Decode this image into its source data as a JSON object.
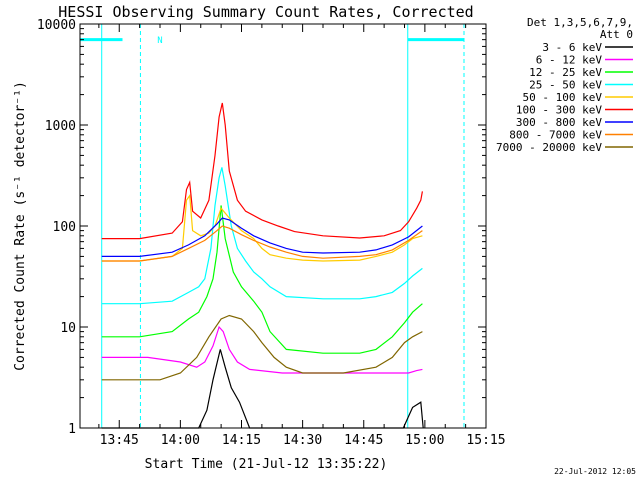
{
  "chart_data": {
    "type": "line",
    "title": "HESSI Observing Summary Count Rates, Corrected",
    "xlabel": "Start Time (21-Jul-12 13:35:22)",
    "ylabel": "Corrected Count Rate (s⁻¹ detector⁻¹)",
    "yscale": "log",
    "ylim": [
      1,
      10000
    ],
    "xlim_minutes": [
      35.37,
      135.0
    ],
    "x_unit": "minutes after 13:00 UT",
    "x_ticks": [
      {
        "t": 45,
        "label": "13:45"
      },
      {
        "t": 60,
        "label": "14:00"
      },
      {
        "t": 75,
        "label": "14:15"
      },
      {
        "t": 90,
        "label": "14:30"
      },
      {
        "t": 105,
        "label": "14:45"
      },
      {
        "t": 120,
        "label": "15:00"
      },
      {
        "t": 135,
        "label": "15:15"
      }
    ],
    "y_ticks": [
      {
        "v": 1,
        "label": "1"
      },
      {
        "v": 10,
        "label": "10"
      },
      {
        "v": 100,
        "label": "100"
      },
      {
        "v": 1000,
        "label": "1000"
      },
      {
        "v": 10000,
        "label": "10000"
      }
    ],
    "legend_header": [
      "Det 1,3,5,6,7,9,",
      "Att 0"
    ],
    "series": [
      {
        "name": "3 - 6 keV",
        "color": "#000000",
        "t": [
          40.7,
          64.5,
          66.5,
          68.0,
          69.8,
          71.0,
          72.5,
          74.5,
          77.0,
          79.0,
          114.7,
          117.0,
          119.0,
          119.6
        ],
        "values": [
          1,
          1,
          1.5,
          3,
          6,
          4,
          2.5,
          1.8,
          1,
          1,
          1,
          1.6,
          1.8,
          1
        ]
      },
      {
        "name": "6 - 12 keV",
        "color": "#ff00ff",
        "t": [
          40.7,
          52.0,
          60.0,
          64.0,
          66.0,
          68.0,
          69.5,
          70.5,
          72.0,
          74.0,
          77.0,
          85.0,
          100.0,
          110.0,
          116.0,
          118.0,
          119.4
        ],
        "values": [
          5,
          5,
          4.5,
          4,
          4.5,
          6.5,
          10,
          9,
          6,
          4.5,
          3.8,
          3.5,
          3.5,
          3.5,
          3.5,
          3.7,
          3.8
        ]
      },
      {
        "name": "12 - 25 keV",
        "color": "#00ff00",
        "t": [
          40.7,
          50.0,
          58.0,
          62.0,
          64.5,
          66.5,
          68.0,
          69.0,
          70.0,
          71.0,
          73.0,
          75.0,
          78.0,
          80.0,
          82.0,
          86.0,
          95.0,
          104.0,
          108.0,
          112.0,
          115.0,
          117.0,
          119.4
        ],
        "values": [
          8,
          8,
          9,
          12,
          14,
          20,
          30,
          55,
          160,
          75,
          35,
          25,
          18,
          14,
          9,
          6,
          5.5,
          5.5,
          6,
          8,
          11,
          14,
          17
        ]
      },
      {
        "name": "25 - 50 keV",
        "color": "#00ffff",
        "t": [
          40.7,
          50.0,
          58.0,
          62.0,
          64.5,
          66.0,
          67.5,
          68.5,
          69.5,
          70.2,
          71.0,
          72.5,
          74.0,
          76.0,
          78.0,
          80.0,
          82.0,
          86.0,
          95.0,
          104.0,
          108.0,
          112.0,
          115.0,
          117.0,
          119.4
        ],
        "values": [
          17,
          17,
          18,
          22,
          25,
          30,
          60,
          160,
          300,
          380,
          250,
          100,
          60,
          45,
          35,
          30,
          25,
          20,
          19,
          19,
          20,
          22,
          27,
          32,
          38
        ]
      },
      {
        "name": "50 - 100 keV",
        "color": "#ffcc00",
        "t": [
          40.7,
          50.0,
          58.0,
          60.5,
          61.5,
          62.3,
          63.0,
          65.0,
          67.0,
          68.5,
          70.0,
          72.0,
          75.0,
          78.0,
          80.0,
          82.0,
          86.0,
          90.0,
          95.0,
          104.0,
          108.0,
          112.0,
          115.0,
          117.0,
          119.4
        ],
        "values": [
          45,
          45,
          50,
          60,
          180,
          200,
          90,
          80,
          85,
          100,
          150,
          120,
          90,
          75,
          60,
          52,
          48,
          46,
          45,
          46,
          50,
          55,
          65,
          75,
          80
        ]
      },
      {
        "name": "100 - 300 keV",
        "color": "#ff0000",
        "t": [
          40.7,
          50.0,
          58.0,
          60.5,
          61.5,
          62.3,
          63.0,
          65.0,
          67.0,
          68.5,
          69.5,
          70.3,
          71.0,
          72.0,
          74.0,
          76.0,
          80.0,
          84.0,
          88.0,
          95.0,
          104.0,
          110.0,
          114.0,
          116.0,
          118.0,
          119.0,
          119.4
        ],
        "values": [
          75,
          75,
          85,
          110,
          230,
          270,
          140,
          120,
          180,
          500,
          1200,
          1650,
          1000,
          350,
          180,
          140,
          115,
          100,
          88,
          80,
          76,
          80,
          90,
          110,
          150,
          180,
          220
        ]
      },
      {
        "name": "300 - 800 keV",
        "color": "#0000ff",
        "t": [
          40.7,
          50.0,
          58.0,
          62.0,
          66.0,
          69.0,
          70.3,
          72.0,
          75.0,
          78.0,
          82.0,
          86.0,
          90.0,
          95.0,
          104.0,
          108.0,
          112.0,
          116.0,
          119.4
        ],
        "values": [
          50,
          50,
          55,
          65,
          80,
          105,
          120,
          115,
          95,
          80,
          68,
          60,
          55,
          54,
          55,
          58,
          65,
          78,
          100
        ]
      },
      {
        "name": "800 - 7000 keV",
        "color": "#ff8000",
        "t": [
          40.7,
          50.0,
          58.0,
          62.0,
          66.0,
          69.0,
          70.3,
          72.0,
          75.0,
          78.0,
          82.0,
          86.0,
          90.0,
          95.0,
          104.0,
          108.0,
          112.0,
          116.0,
          119.4
        ],
        "values": [
          45,
          45,
          50,
          60,
          72,
          90,
          100,
          95,
          82,
          72,
          62,
          55,
          50,
          48,
          50,
          52,
          58,
          72,
          90
        ]
      },
      {
        "name": "7000 - 20000 keV",
        "color": "#806600",
        "t": [
          40.7,
          55.0,
          60.0,
          64.0,
          67.0,
          70.0,
          72.0,
          75.0,
          78.0,
          80.0,
          83.0,
          86.0,
          90.0,
          100.0,
          108.0,
          112.0,
          115.0,
          117.0,
          119.4
        ],
        "values": [
          3,
          3,
          3.5,
          5,
          8,
          12,
          13,
          12,
          9,
          7,
          5,
          4,
          3.5,
          3.5,
          4,
          5,
          7,
          8,
          9
        ]
      }
    ],
    "attenuator_bars": [
      {
        "t_start": 35.37,
        "t_end": 45.8,
        "value": 7000
      },
      {
        "t_start": 115.8,
        "t_end": 129.6,
        "value": 7000
      }
    ],
    "gap_markers_t": [
      40.7,
      50.2,
      115.8,
      129.6
    ],
    "annotation": "N",
    "footer_date": "22-Jul-2012 12:05"
  }
}
